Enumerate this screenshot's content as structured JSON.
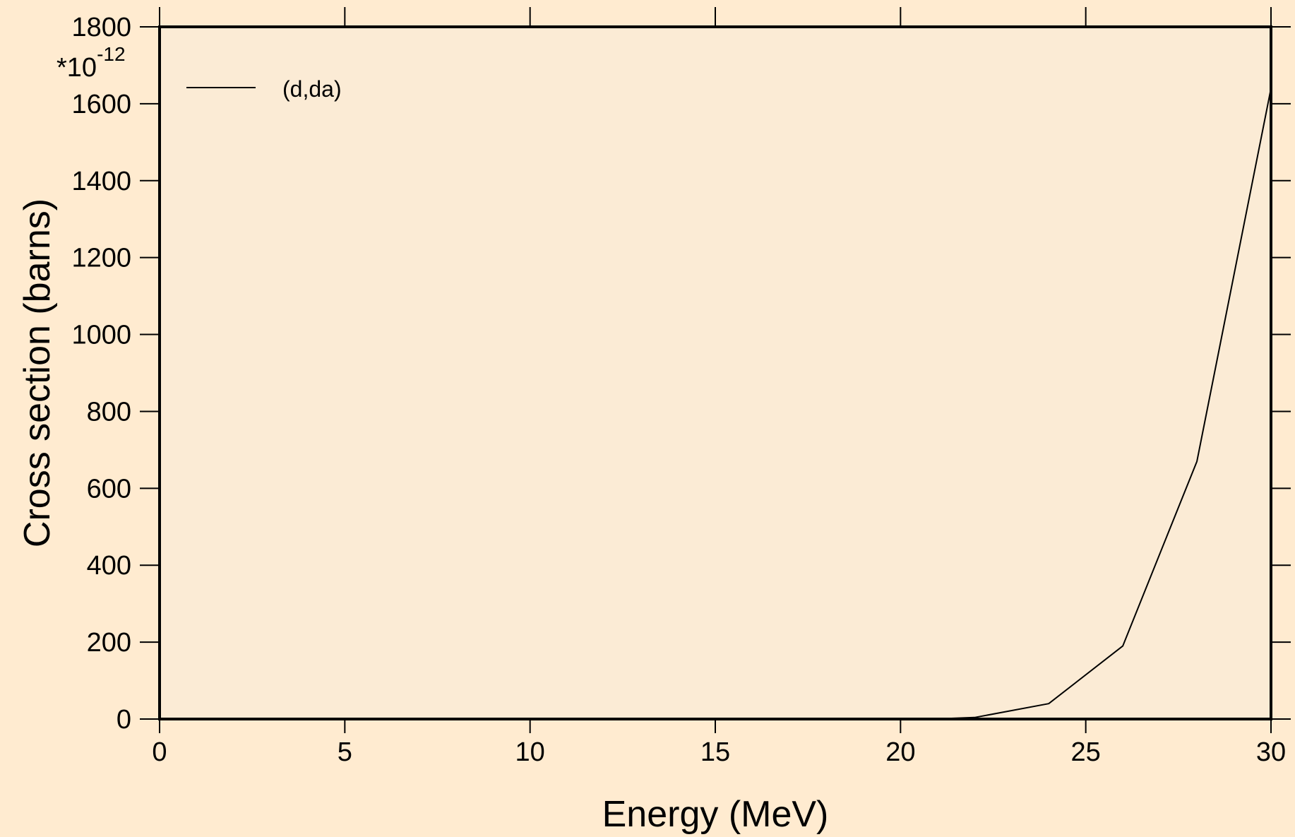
{
  "chart_data": {
    "type": "line",
    "xlabel": "Energy (MeV)",
    "ylabel": "Cross section (barns)",
    "y_multiplier": {
      "base": "*10",
      "exponent": "-12"
    },
    "xlim": [
      0,
      30
    ],
    "ylim": [
      0,
      1800
    ],
    "x_ticks": [
      "0",
      "5",
      "10",
      "15",
      "20",
      "25",
      "30"
    ],
    "y_ticks": [
      "0",
      "200",
      "400",
      "600",
      "800",
      "1000",
      "1200",
      "1400",
      "1600",
      "1800"
    ],
    "grid": false,
    "legend_position": "top-left",
    "series": [
      {
        "name": "(d,da)",
        "color": "#000000",
        "x": [
          0,
          20,
          21,
          22,
          24,
          26,
          28,
          30
        ],
        "y": [
          0,
          0,
          0.5,
          4,
          40,
          190,
          670,
          1640
        ]
      }
    ],
    "colors": {
      "page_background": "#ffebd0",
      "plot_background": "#fbebd5",
      "axis": "#000000"
    }
  }
}
